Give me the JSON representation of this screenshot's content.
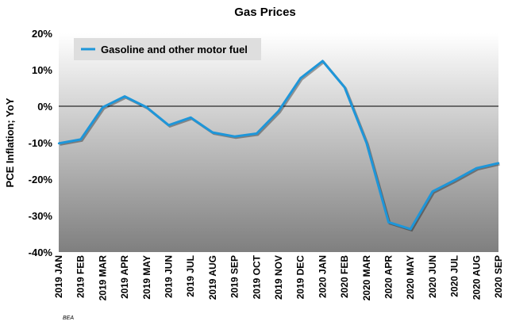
{
  "chart_data": {
    "type": "line",
    "title": "Gas Prices",
    "ylabel": "PCE Inflation; YoY",
    "xlabel": "",
    "source": "BEA",
    "ylim": [
      -40,
      20
    ],
    "yticks": [
      -40,
      -30,
      -20,
      -10,
      0,
      10,
      20
    ],
    "ytick_labels": [
      "-40%",
      "-30%",
      "-20%",
      "-10%",
      "0%",
      "10%",
      "20%"
    ],
    "categories": [
      "2019 JAN",
      "2019 FEB",
      "2019 MAR",
      "2019 APR",
      "2019 MAY",
      "2019 JUN",
      "2019 JUL",
      "2019 AUG",
      "2019 SEP",
      "2019 OCT",
      "2019 NOV",
      "2019 DEC",
      "2020 JAN",
      "2020 FEB",
      "2020 MAR",
      "2020 APR",
      "2020 MAY",
      "2020 JUN",
      "2020 JUL",
      "2020 AUG",
      "2020 SEP"
    ],
    "series": [
      {
        "name": "Gasoline and other motor fuel",
        "color": "#1e96d9",
        "values": [
          -10.2,
          -9.1,
          -0.3,
          2.7,
          -0.3,
          -5.2,
          -3.1,
          -7.2,
          -8.3,
          -7.5,
          -1.3,
          7.7,
          12.4,
          5.2,
          -10.1,
          -31.8,
          -33.7,
          -23.4,
          -20.3,
          -17.0,
          -15.6
        ]
      }
    ],
    "legend": "top-left",
    "grid": false,
    "background_gradient": [
      "#ffffff",
      "#7f7f7f"
    ]
  }
}
